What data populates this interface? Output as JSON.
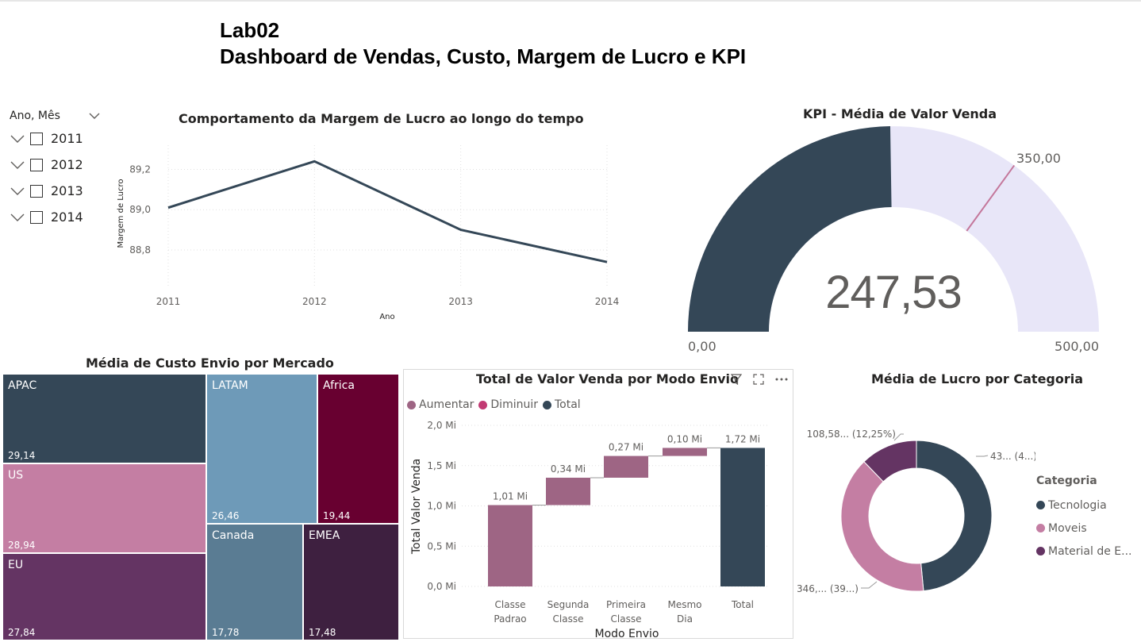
{
  "header": {
    "line1": "Lab02",
    "line2": "Dashboard de Vendas, Custo, Margem de Lucro e KPI"
  },
  "slicer": {
    "title": "Ano, Mês",
    "items": [
      {
        "label": "2011",
        "checked": false
      },
      {
        "label": "2012",
        "checked": false
      },
      {
        "label": "2013",
        "checked": false
      },
      {
        "label": "2014",
        "checked": false
      }
    ]
  },
  "line_chart": {
    "title": "Comportamento da Margem de Lucro ao longo do tempo",
    "ylabel": "Margem de Lucro",
    "xlabel": "Ano",
    "y_ticks": [
      "89,2",
      "89,0",
      "88,8"
    ],
    "x_ticks": [
      "2011",
      "2012",
      "2013",
      "2014"
    ]
  },
  "gauge": {
    "title": "KPI - Média de Valor Venda",
    "value_label": "247,53",
    "min_label": "0,00",
    "max_label": "500,00",
    "target_label": "350,00",
    "value": 247.53,
    "min": 0,
    "max": 500,
    "target": 350,
    "colors": {
      "fill": "#344757",
      "track": "#e8e6f8",
      "target": "#c4779b"
    }
  },
  "treemap": {
    "title": "Média de Custo Envio por Mercado",
    "cells": [
      {
        "label": "APAC",
        "value": "29,14",
        "color": "#344757"
      },
      {
        "label": "US",
        "value": "28,94",
        "color": "#c47ea3"
      },
      {
        "label": "EU",
        "value": "27,84",
        "color": "#643463"
      },
      {
        "label": "LATAM",
        "value": "26,46",
        "color": "#6e9ab8"
      },
      {
        "label": "Africa",
        "value": "19,44",
        "color": "#680030"
      },
      {
        "label": "Canada",
        "value": "17,78",
        "color": "#5a7c93"
      },
      {
        "label": "EMEA",
        "value": "17,48",
        "color": "#3e2040"
      }
    ]
  },
  "waterfall": {
    "title": "Total de Valor Venda por Modo Envio",
    "legend": [
      {
        "label": "Aumentar",
        "color": "#9e6584"
      },
      {
        "label": "Diminuir",
        "color": "#c23a73"
      },
      {
        "label": "Total",
        "color": "#344757"
      }
    ],
    "ylabel": "Total Valor Venda",
    "xlabel": "Modo Envio",
    "y_ticks": [
      "2,0 Mi",
      "1,5 Mi",
      "1,0 Mi",
      "0,5 Mi",
      "0,0 Mi"
    ],
    "icons": [
      "filter-icon",
      "focus-mode-icon",
      "more-options-icon"
    ]
  },
  "donut": {
    "title": "Média de Lucro por Categoria",
    "legend_title": "Categoria",
    "legend": [
      {
        "label": "Tecnologia",
        "color": "#344757"
      },
      {
        "label": "Moveis",
        "color": "#c47ea3"
      },
      {
        "label": "Material de E...",
        "color": "#643463"
      }
    ],
    "slice_labels": [
      "43... (4...)",
      "346,... (39...)",
      "108,58... (12,25%)"
    ]
  },
  "chart_data": [
    {
      "type": "line",
      "x": [
        2011,
        2012,
        2013,
        2014
      ],
      "series": [
        {
          "values": [
            89.01,
            89.24,
            88.9,
            88.74
          ]
        }
      ],
      "xlabel": "Ano",
      "ylabel": "Margem de Lucro",
      "title": "Comportamento da Margem de Lucro ao longo do tempo",
      "ylim": [
        88.65,
        89.32
      ],
      "grid": true
    },
    {
      "type": "bar",
      "subtype": "waterfall",
      "categories": [
        "Classe Padrao",
        "Segunda Classe",
        "Primeira Classe",
        "Mesmo Dia",
        "Total"
      ],
      "values": [
        1.01,
        0.34,
        0.27,
        0.1,
        1.72
      ],
      "data_labels": [
        "1,01 Mi",
        "0,34 Mi",
        "0,27 Mi",
        "0,10 Mi",
        "1,72 Mi"
      ],
      "unit": "Mi",
      "ylim": [
        0,
        2.0
      ],
      "title": "Total de Valor Venda por Modo Envio",
      "xlabel": "Modo Envio",
      "ylabel": "Total Valor Venda"
    },
    {
      "type": "pie",
      "subtype": "donut",
      "categories": [
        "Tecnologia",
        "Moveis",
        "Material de E..."
      ],
      "percent": [
        48.5,
        39.25,
        12.25
      ],
      "title": "Média de Lucro por Categoria"
    }
  ]
}
